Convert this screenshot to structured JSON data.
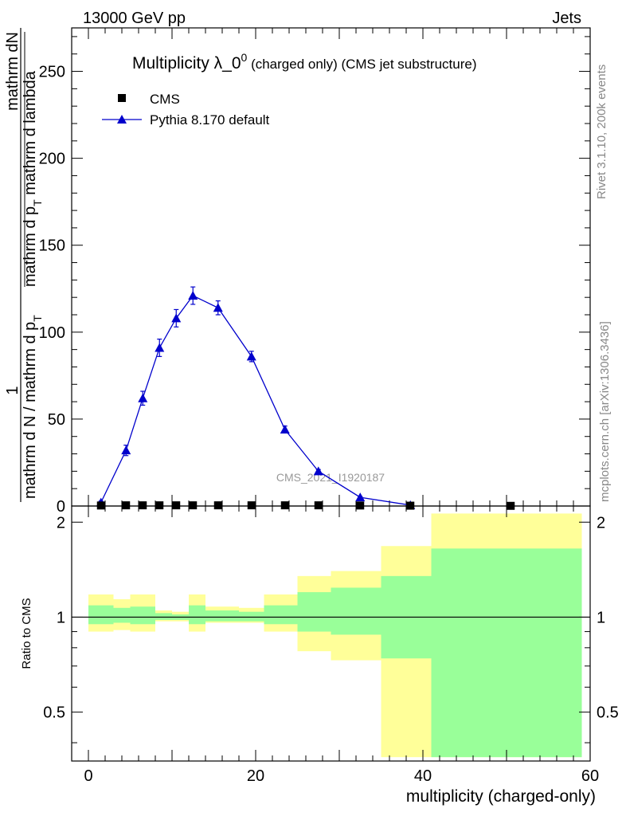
{
  "header": {
    "left": "13000 GeV pp",
    "right": "Jets"
  },
  "side_labels": {
    "rivet": "Rivet 3.1.10,  200k events",
    "mcplots": "mcplots.cern.ch [arXiv:1306.3436]"
  },
  "watermark": "CMS_2021_I1920187",
  "colors": {
    "mc": "#0000cc",
    "data": "#000000",
    "band_outer": "#ffff99",
    "band_inner": "#99ff99"
  },
  "chart_data": [
    {
      "type": "line",
      "title_main": "Multiplicity λ_0",
      "title_sup": "0",
      "title_rest": " (charged only) (CMS jet substructure)",
      "ylabel_numerator": "1",
      "ylabel_line1": "mathrm dN",
      "ylabel_line2": "mathrm d p",
      "ylabel_line2_sub": "T",
      "ylabel_line2_rest": " mathrm d lambda",
      "ylabel_den_a": "mathrm d N / mathrm d p",
      "ylabel_den_sub": "T",
      "xlim": [
        -2,
        60
      ],
      "ylim": [
        0,
        275
      ],
      "yticks": [
        0,
        50,
        100,
        150,
        200,
        250
      ],
      "legend": [
        {
          "name": "CMS",
          "marker": "square"
        },
        {
          "name": "Pythia 8.170 default",
          "marker": "triangle"
        }
      ],
      "series": [
        {
          "name": "Pythia 8.170 default",
          "x": [
            1.5,
            4.5,
            6.5,
            8.5,
            10.5,
            12.5,
            15.5,
            19.5,
            23.5,
            27.5,
            32.5,
            38.5
          ],
          "y": [
            2,
            32,
            62,
            91,
            108,
            121,
            114,
            86,
            44,
            20,
            5,
            0.5
          ],
          "err": [
            0.8,
            3,
            4,
            5,
            5,
            5,
            4,
            3,
            2,
            1,
            0.5,
            0.2
          ]
        },
        {
          "name": "CMS",
          "x": [
            1.5,
            4.5,
            6.5,
            8.5,
            10.5,
            12.5,
            15.5,
            19.5,
            23.5,
            27.5,
            32.5,
            38.5,
            50.5
          ],
          "y": [
            0.3,
            0.4,
            0.4,
            0.4,
            0.4,
            0.4,
            0.4,
            0.4,
            0.4,
            0.4,
            0.3,
            0.2,
            0.1
          ]
        }
      ]
    },
    {
      "type": "area",
      "ylabel": "Ratio to CMS",
      "xlabel": "multiplicity (charged-only)",
      "xlim": [
        -2,
        60
      ],
      "ylim": [
        0.35,
        2.25
      ],
      "yticks": [
        0.5,
        1,
        2
      ],
      "xticks": [
        0,
        20,
        40,
        60
      ],
      "bands": {
        "edges": [
          0,
          3,
          5,
          8,
          10,
          12,
          14,
          18,
          21,
          25,
          29,
          35,
          41,
          59
        ],
        "inner_lo": [
          0.95,
          0.96,
          0.95,
          0.98,
          0.98,
          0.95,
          0.97,
          0.97,
          0.95,
          0.9,
          0.88,
          0.74,
          0.36
        ],
        "inner_hi": [
          1.09,
          1.07,
          1.08,
          1.03,
          1.02,
          1.09,
          1.05,
          1.04,
          1.09,
          1.2,
          1.24,
          1.35,
          1.65
        ],
        "outer_lo": [
          0.9,
          0.91,
          0.9,
          0.97,
          0.97,
          0.9,
          0.96,
          0.96,
          0.9,
          0.78,
          0.73,
          0.36,
          0.36
        ],
        "outer_hi": [
          1.18,
          1.14,
          1.18,
          1.05,
          1.04,
          1.18,
          1.08,
          1.07,
          1.18,
          1.35,
          1.4,
          1.68,
          2.13
        ]
      }
    }
  ]
}
